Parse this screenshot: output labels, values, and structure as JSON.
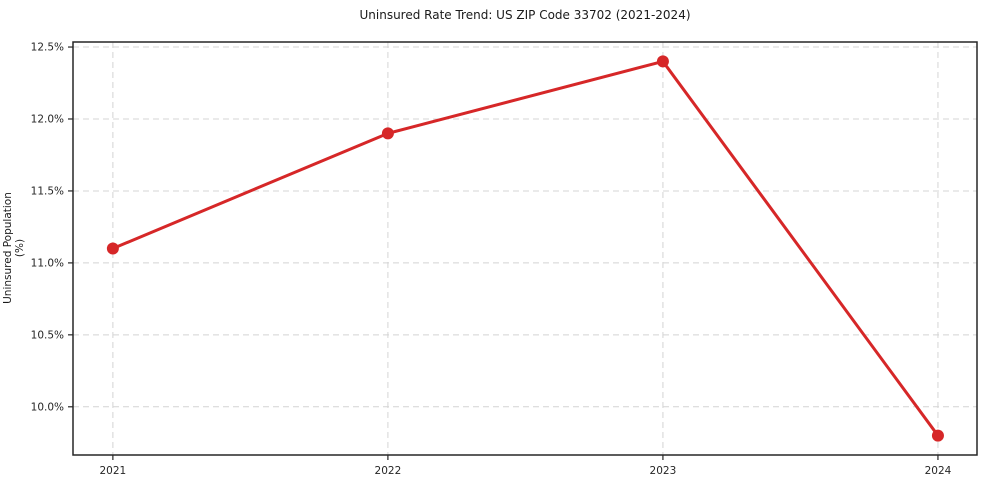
{
  "chart_data": {
    "type": "line",
    "title": "Uninsured Rate Trend: US ZIP Code 33702 (2021-2024)",
    "xlabel": "",
    "ylabel": "Uninsured Population (%)",
    "x": [
      2021,
      2022,
      2023,
      2024
    ],
    "x_tick_labels": [
      "2021",
      "2022",
      "2023",
      "2024"
    ],
    "series": [
      {
        "name": "Uninsured rate",
        "values": [
          11.1,
          11.9,
          12.4,
          9.8
        ]
      }
    ],
    "y_ticks": [
      10.0,
      10.5,
      11.0,
      11.5,
      12.0,
      12.5
    ],
    "y_tick_labels": [
      "10.0%",
      "10.5%",
      "11.0%",
      "11.5%",
      "12.0%",
      "12.5%"
    ],
    "xlim": [
      2020.855,
      2024.142
    ],
    "ylim": [
      9.665,
      12.535
    ],
    "grid": true,
    "legend": null,
    "line_color": "#d62728",
    "grid_color": "#d4d4d4",
    "spine_color": "#262626",
    "tick_label_color": "#262626"
  }
}
